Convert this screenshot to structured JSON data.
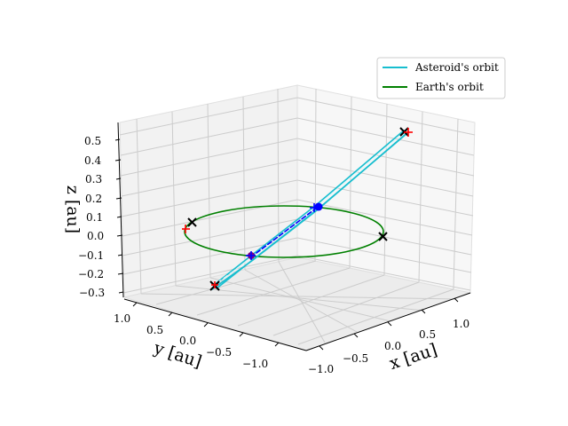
{
  "chart_data": {
    "type": "line",
    "projection": "3d",
    "title": "",
    "xlabel": "x [au]",
    "ylabel": "y [au]",
    "zlabel": "z [au]",
    "xlim": [
      -1.2,
      1.2
    ],
    "ylim": [
      -1.2,
      1.2
    ],
    "zlim": [
      -0.33,
      0.6
    ],
    "x_ticks": [
      "−1.0",
      "−0.5",
      "0.0",
      "0.5",
      "1.0"
    ],
    "y_ticks": [
      "1.0",
      "0.5",
      "0.0",
      "−0.5",
      "−1.0"
    ],
    "z_ticks": [
      "0.5",
      "0.4",
      "0.3",
      "0.2",
      "0.1",
      "0.0",
      "−0.1",
      "−0.2",
      "−0.3"
    ],
    "grid": true,
    "legend_position": "top-right",
    "colors": {
      "asteroid": "#17becf",
      "earth": "#008000",
      "marker_x": "#000000",
      "marker_plus": "#ff0000",
      "body_current": "#0000ff",
      "body_past": "#800080"
    },
    "series": [
      {
        "name": "Asteroid's orbit",
        "color": "#17becf"
      },
      {
        "name": "Earth's orbit",
        "color": "#008000"
      }
    ]
  }
}
